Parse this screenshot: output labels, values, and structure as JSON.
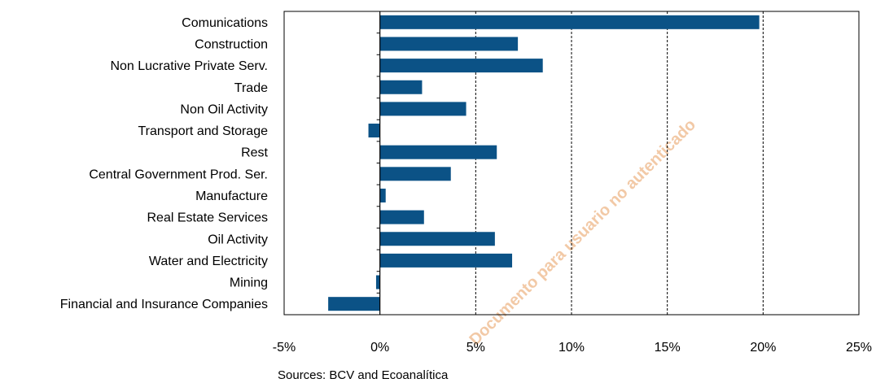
{
  "chart_data": {
    "type": "bar",
    "orientation": "horizontal",
    "categories": [
      "Comunications",
      "Construction",
      "Non Lucrative Private Serv.",
      "Trade",
      "Non Oil Activity",
      "Transport and Storage",
      "Rest",
      "Central Government Prod. Ser.",
      "Manufacture",
      "Real Estate Services",
      "Oil Activity",
      "Water and Electricity",
      "Mining",
      "Financial and Insurance Companies"
    ],
    "values": [
      19.8,
      7.2,
      8.5,
      2.2,
      4.5,
      -0.6,
      6.1,
      3.7,
      0.3,
      2.3,
      6.0,
      6.9,
      -0.2,
      -2.7
    ],
    "xlim": [
      -5,
      25
    ],
    "x_ticks": [
      -5,
      0,
      5,
      10,
      15,
      20,
      25
    ],
    "x_tick_labels": [
      "-5%",
      "0%",
      "5%",
      "10%",
      "15%",
      "20%",
      "25%"
    ],
    "bar_color": "#0b5286",
    "grid": "vertical dashed",
    "legend": "none"
  },
  "source_note": "Sources: BCV and Ecoanalítica",
  "watermark": "Documento para usuario no autenticado"
}
